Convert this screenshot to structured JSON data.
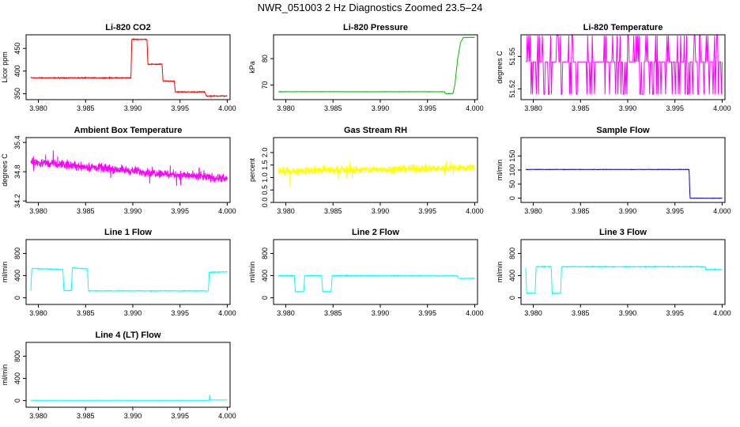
{
  "page_title": "NWR_051003  2 Hz Diagnostics Zoomed 23.5–24",
  "chart_data": [
    {
      "type": "line",
      "title": "Li-820 CO2",
      "ylabel": "Licor ppm",
      "xlim": [
        3.9787,
        4.0003
      ],
      "ylim": [
        337,
        480
      ],
      "yticks": [
        "350",
        "400",
        "450"
      ],
      "ytick_values": [
        350,
        400,
        450
      ],
      "xticks": [
        "3.980",
        "3.985",
        "3.990",
        "3.995",
        "4.000"
      ],
      "xtick_values": [
        3.98,
        3.985,
        3.99,
        3.995,
        4.0
      ],
      "color": "#ff0000",
      "pattern": "steps",
      "points": [
        [
          3.9792,
          385
        ],
        [
          3.9898,
          385
        ],
        [
          3.9899,
          470
        ],
        [
          3.9915,
          470
        ],
        [
          3.9916,
          415
        ],
        [
          3.9931,
          415
        ],
        [
          3.9932,
          378
        ],
        [
          3.9944,
          378
        ],
        [
          3.9945,
          354
        ],
        [
          3.9976,
          354
        ],
        [
          3.9977,
          350
        ],
        [
          3.9978,
          345
        ],
        [
          4.0,
          345
        ]
      ],
      "noise": 1.5
    },
    {
      "type": "line",
      "title": "Li-820 Pressure",
      "ylabel": "kPa",
      "xlim": [
        3.9787,
        4.0003
      ],
      "ylim": [
        64.5,
        89
      ],
      "yticks": [
        "70",
        "80"
      ],
      "ytick_values": [
        70,
        80
      ],
      "xticks": [
        "3.980",
        "3.985",
        "3.990",
        "3.995",
        "4.000"
      ],
      "xtick_values": [
        3.98,
        3.985,
        3.99,
        3.995,
        4.0
      ],
      "color": "#00bb00",
      "pattern": "steps",
      "points": [
        [
          3.9792,
          67.5
        ],
        [
          3.9968,
          67.5
        ],
        [
          3.9969,
          66.8
        ],
        [
          3.9977,
          66.8
        ],
        [
          3.9979,
          70
        ],
        [
          3.9982,
          80
        ],
        [
          3.9985,
          86
        ],
        [
          3.9988,
          88
        ],
        [
          4.0,
          88
        ]
      ],
      "noise": 0.1
    },
    {
      "type": "line",
      "title": "Li-820 Temperature",
      "ylabel": "degrees C",
      "xlim": [
        3.9787,
        4.0003
      ],
      "ylim": [
        51.51,
        51.57
      ],
      "yticks": [
        "51.52",
        "51.55"
      ],
      "ytick_values": [
        51.52,
        51.55
      ],
      "extra_yticks_hidden": [
        51.56
      ],
      "xticks": [
        "3.980",
        "3.985",
        "3.990",
        "3.995",
        "4.000"
      ],
      "xtick_values": [
        3.98,
        3.985,
        3.99,
        3.995,
        4.0
      ],
      "color": "#ff00ff",
      "pattern": "binary",
      "levels": [
        51.515,
        51.545,
        51.57
      ]
    },
    {
      "type": "line",
      "title": "Ambient Box Temperature",
      "ylabel": "degrees C",
      "xlim": [
        3.9787,
        4.0003
      ],
      "ylim": [
        34.17,
        35.5
      ],
      "yticks": [
        "34.2",
        "34.8",
        "35.4"
      ],
      "ytick_values": [
        34.2,
        34.8,
        35.4
      ],
      "xticks": [
        "3.980",
        "3.985",
        "3.990",
        "3.995",
        "4.000"
      ],
      "xtick_values": [
        3.98,
        3.985,
        3.99,
        3.995,
        4.0
      ],
      "color": "#ff00ff",
      "pattern": "noisy",
      "trend": [
        [
          3.9792,
          35.0
        ],
        [
          4.0,
          34.65
        ]
      ],
      "noise": 0.13
    },
    {
      "type": "line",
      "title": "Gas Stream RH",
      "ylabel": "percent",
      "xlim": [
        3.9787,
        4.0003
      ],
      "ylim": [
        0,
        2.6
      ],
      "yticks": [
        "0.0",
        "0.5",
        "1.0",
        "1.5",
        "2.0"
      ],
      "ytick_values": [
        0,
        0.5,
        1.0,
        1.5,
        2.0
      ],
      "xticks": [
        "3.980",
        "3.985",
        "3.990",
        "3.995",
        "4.000"
      ],
      "xtick_values": [
        3.98,
        3.985,
        3.99,
        3.995,
        4.0
      ],
      "color": "#ffff00",
      "pattern": "noisy",
      "trend": [
        [
          3.9792,
          1.25
        ],
        [
          4.0,
          1.4
        ]
      ],
      "noise": 0.22
    },
    {
      "type": "line",
      "title": "Sample Flow",
      "ylabel": "ml/min",
      "xlim": [
        3.9787,
        4.0003
      ],
      "ylim": [
        -15,
        215
      ],
      "yticks": [
        "0",
        "50",
        "100",
        "150"
      ],
      "ytick_values": [
        0,
        50,
        100,
        150
      ],
      "xticks": [
        "3.980",
        "3.985",
        "3.990",
        "3.995",
        "4.000"
      ],
      "xtick_values": [
        3.98,
        3.985,
        3.99,
        3.995,
        4.0
      ],
      "color": "#0000cc",
      "pattern": "steps",
      "points": [
        [
          3.9792,
          102
        ],
        [
          3.9965,
          102
        ],
        [
          3.9966,
          0
        ],
        [
          4.0,
          0
        ]
      ],
      "noise": 1
    },
    {
      "type": "line",
      "title": "Line 1 Flow",
      "ylabel": "ml/min",
      "xlim": [
        3.9787,
        4.0003
      ],
      "ylim": [
        -120,
        1050
      ],
      "yticks": [
        "0",
        "400",
        "800"
      ],
      "ytick_values": [
        0,
        400,
        800
      ],
      "xticks": [
        "3.980",
        "3.985",
        "3.990",
        "3.995",
        "4.000"
      ],
      "xtick_values": [
        3.98,
        3.985,
        3.99,
        3.995,
        4.0
      ],
      "color": "#00ffff",
      "pattern": "steps",
      "points": [
        [
          3.9792,
          120
        ],
        [
          3.9793,
          530
        ],
        [
          3.9826,
          510
        ],
        [
          3.9827,
          130
        ],
        [
          3.9835,
          130
        ],
        [
          3.9836,
          545
        ],
        [
          3.9852,
          520
        ],
        [
          3.9853,
          125
        ],
        [
          3.998,
          125
        ],
        [
          3.9981,
          460
        ],
        [
          4.0,
          470
        ]
      ],
      "noise": 10
    },
    {
      "type": "line",
      "title": "Line 2 Flow",
      "ylabel": "ml/min",
      "xlim": [
        3.9787,
        4.0003
      ],
      "ylim": [
        -120,
        1050
      ],
      "yticks": [
        "0",
        "400",
        "800"
      ],
      "ytick_values": [
        0,
        400,
        800
      ],
      "xticks": [
        "3.980",
        "3.985",
        "3.990",
        "3.995",
        "4.000"
      ],
      "xtick_values": [
        3.98,
        3.985,
        3.99,
        3.995,
        4.0
      ],
      "color": "#00ffff",
      "pattern": "steps",
      "points": [
        [
          3.9792,
          400
        ],
        [
          3.9809,
          400
        ],
        [
          3.981,
          110
        ],
        [
          3.9819,
          110
        ],
        [
          3.982,
          400
        ],
        [
          3.9838,
          400
        ],
        [
          3.9839,
          110
        ],
        [
          3.9848,
          110
        ],
        [
          3.9849,
          400
        ],
        [
          3.9982,
          395
        ],
        [
          3.9983,
          350
        ],
        [
          4.0,
          350
        ]
      ],
      "noise": 10
    },
    {
      "type": "line",
      "title": "Line 3 Flow",
      "ylabel": "ml/min",
      "xlim": [
        3.9787,
        4.0003
      ],
      "ylim": [
        -120,
        1050
      ],
      "yticks": [
        "0",
        "400",
        "800"
      ],
      "ytick_values": [
        0,
        400,
        800
      ],
      "xticks": [
        "3.980",
        "3.985",
        "3.990",
        "3.995",
        "4.000"
      ],
      "xtick_values": [
        3.98,
        3.985,
        3.99,
        3.995,
        4.0
      ],
      "color": "#00ffff",
      "pattern": "steps",
      "points": [
        [
          3.9792,
          540
        ],
        [
          3.9793,
          80
        ],
        [
          3.9802,
          80
        ],
        [
          3.9803,
          560
        ],
        [
          3.9819,
          560
        ],
        [
          3.982,
          80
        ],
        [
          3.9829,
          80
        ],
        [
          3.983,
          560
        ],
        [
          3.9982,
          560
        ],
        [
          3.9983,
          510
        ],
        [
          4.0,
          510
        ]
      ],
      "noise": 12
    },
    {
      "type": "line",
      "title": "Line 4 (LT) Flow",
      "ylabel": "ml/min",
      "xlim": [
        3.9787,
        4.0003
      ],
      "ylim": [
        -120,
        1050
      ],
      "yticks": [
        "0",
        "400",
        "800"
      ],
      "ytick_values": [
        0,
        400,
        800
      ],
      "xticks": [
        "3.980",
        "3.985",
        "3.990",
        "3.995",
        "4.000"
      ],
      "xtick_values": [
        3.98,
        3.985,
        3.99,
        3.995,
        4.0
      ],
      "color": "#00ffff",
      "pattern": "steps",
      "points": [
        [
          3.9792,
          5
        ],
        [
          3.9981,
          5
        ],
        [
          3.99815,
          120
        ],
        [
          3.9982,
          10
        ],
        [
          4.0,
          10
        ]
      ],
      "noise": 3
    }
  ]
}
